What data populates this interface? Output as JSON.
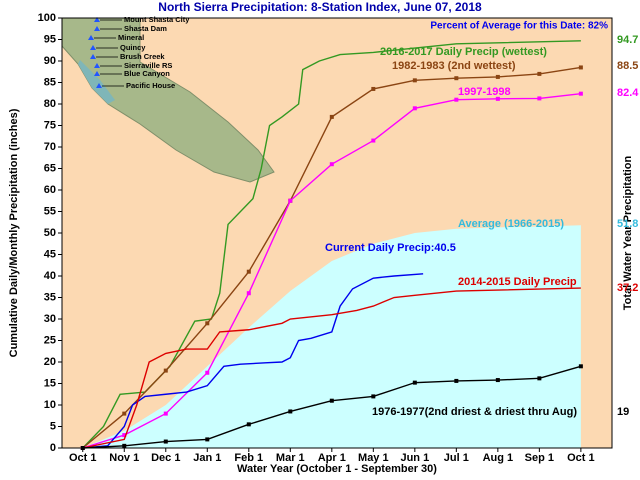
{
  "chart_data": {
    "type": "line",
    "title": "North Sierra Precipitation: 8-Station Index, June 07, 2018",
    "annotation": "Percent of Average for this Date: 82%",
    "x_label": "Water Year (October 1 - September 30)",
    "y_label": "Cumulative Daily/Monthly Precipitation (inches)",
    "y2_label": "Total Water Year Precipitation",
    "xlim": [
      -0.5,
      12.75
    ],
    "ylim": [
      0,
      100
    ],
    "xticks": [
      {
        "value": 0,
        "label": "Oct 1"
      },
      {
        "value": 1,
        "label": "Nov 1"
      },
      {
        "value": 2,
        "label": "Dec 1"
      },
      {
        "value": 3,
        "label": "Jan 1"
      },
      {
        "value": 4,
        "label": "Feb 1"
      },
      {
        "value": 5,
        "label": "Mar 1"
      },
      {
        "value": 6,
        "label": "Apr 1"
      },
      {
        "value": 7,
        "label": "May 1"
      },
      {
        "value": 8,
        "label": "Jun 1"
      },
      {
        "value": 9,
        "label": "Jul 1"
      },
      {
        "value": 10,
        "label": "Aug 1"
      },
      {
        "value": 11,
        "label": "Sep 1"
      },
      {
        "value": 12,
        "label": "Oct 1"
      }
    ],
    "yticks": [
      0,
      5,
      10,
      15,
      20,
      25,
      30,
      35,
      40,
      45,
      50,
      55,
      60,
      65,
      70,
      75,
      80,
      85,
      90,
      95,
      100
    ],
    "background": "#fcd9b2",
    "series": [
      {
        "name": "2016-2017 Daily Precip (wettest)",
        "color": "#339922",
        "markers": false,
        "x": [
          0,
          0.5,
          0.9,
          1.5,
          2.1,
          2.7,
          3.1,
          3.3,
          3.5,
          4.1,
          4.3,
          4.5,
          4.8,
          5.2,
          5.3,
          5.7,
          6.2,
          7,
          8,
          9,
          12
        ],
        "values": [
          0,
          5,
          12.5,
          13,
          19,
          29.5,
          30,
          36,
          52,
          58,
          65,
          75,
          77,
          80,
          88,
          90,
          91.5,
          92,
          93,
          94,
          94.7
        ]
      },
      {
        "name": "1982-1983 (2nd wettest)",
        "color": "#8b4513",
        "markers": true,
        "x": [
          0,
          1,
          2,
          3,
          4,
          5,
          6,
          7,
          8,
          9,
          10,
          11,
          12
        ],
        "values": [
          0,
          8,
          18,
          29,
          41,
          57.5,
          77,
          83.5,
          85.5,
          86,
          86.3,
          87,
          88.5
        ]
      },
      {
        "name": "1997-1998",
        "color": "#ff00ff",
        "markers": true,
        "x": [
          0,
          1,
          2,
          3,
          4,
          5,
          6,
          7,
          8,
          9,
          10,
          11,
          12
        ],
        "values": [
          0,
          3,
          8,
          17.5,
          36,
          57.5,
          66,
          71.5,
          79,
          81,
          81.2,
          81.3,
          82.4
        ]
      },
      {
        "name": "Average (1966-2015)",
        "color": "#ccffff",
        "markers": false,
        "fill": true,
        "x": [
          0,
          1,
          2,
          3,
          4,
          5,
          6,
          7,
          8,
          9,
          10,
          11,
          12
        ],
        "values": [
          0,
          4,
          10,
          19,
          28,
          36.5,
          43.5,
          47.5,
          50,
          51,
          51.3,
          51.5,
          51.8
        ]
      },
      {
        "name": "Current Daily Precip:40.5",
        "color": "#0000ee",
        "markers": false,
        "x": [
          0,
          0.6,
          1,
          1.2,
          1.5,
          2,
          2.5,
          3,
          3.4,
          3.8,
          4.4,
          4.8,
          5,
          5.2,
          5.5,
          6,
          6.2,
          6.5,
          7,
          7.5,
          8.2
        ],
        "values": [
          0,
          0.5,
          5,
          10,
          12,
          12.5,
          13,
          14.5,
          19,
          19.5,
          19.8,
          20,
          21,
          25,
          25.5,
          27,
          33,
          37,
          39.5,
          40,
          40.5
        ]
      },
      {
        "name": "2014-2015 Daily Precip",
        "color": "#dd0000",
        "markers": false,
        "x": [
          0,
          1,
          1.3,
          1.6,
          2,
          2.5,
          3,
          3.3,
          4,
          4.8,
          5,
          6,
          6.6,
          7,
          7.5,
          8,
          9,
          12
        ],
        "values": [
          0,
          2,
          10,
          20,
          22,
          23,
          23,
          27,
          27.5,
          29,
          30,
          31,
          32,
          33,
          35,
          35.5,
          36.5,
          37.2
        ]
      },
      {
        "name": "1976-1977(2nd driest & driest thru Aug)",
        "color": "#000000",
        "markers": true,
        "x": [
          0,
          1,
          2,
          3,
          4,
          5,
          6,
          7,
          8,
          9,
          10,
          11,
          12
        ],
        "values": [
          0,
          0.5,
          1.5,
          2,
          5.5,
          8.5,
          11,
          12,
          15.2,
          15.6,
          15.8,
          16.2,
          19.0
        ]
      }
    ],
    "map_labels": [
      "Mount Shasta City",
      "Shasta Dam",
      "Mineral",
      "Quincy",
      "Brush Creek",
      "Sierraville RS",
      "Blue Canyon",
      "Pacific House"
    ]
  }
}
